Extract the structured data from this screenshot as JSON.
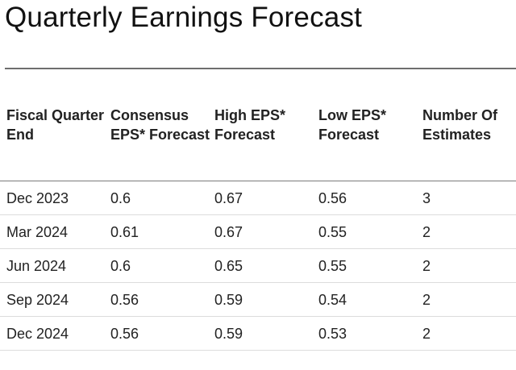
{
  "page_title": "Quarterly Earnings Forecast",
  "table": {
    "headers": [
      "Fiscal Quarter End",
      "Consensus EPS* Forecast",
      "High EPS* Forecast",
      "Low EPS* Forecast",
      "Number Of Estimates"
    ],
    "rows": [
      [
        "Dec 2023",
        "0.6",
        "0.67",
        "0.56",
        "3"
      ],
      [
        "Mar 2024",
        "0.61",
        "0.67",
        "0.55",
        "2"
      ],
      [
        "Jun 2024",
        "0.6",
        "0.65",
        "0.55",
        "2"
      ],
      [
        "Sep 2024",
        "0.56",
        "0.59",
        "0.54",
        "2"
      ],
      [
        "Dec 2024",
        "0.56",
        "0.59",
        "0.53",
        "2"
      ]
    ]
  }
}
